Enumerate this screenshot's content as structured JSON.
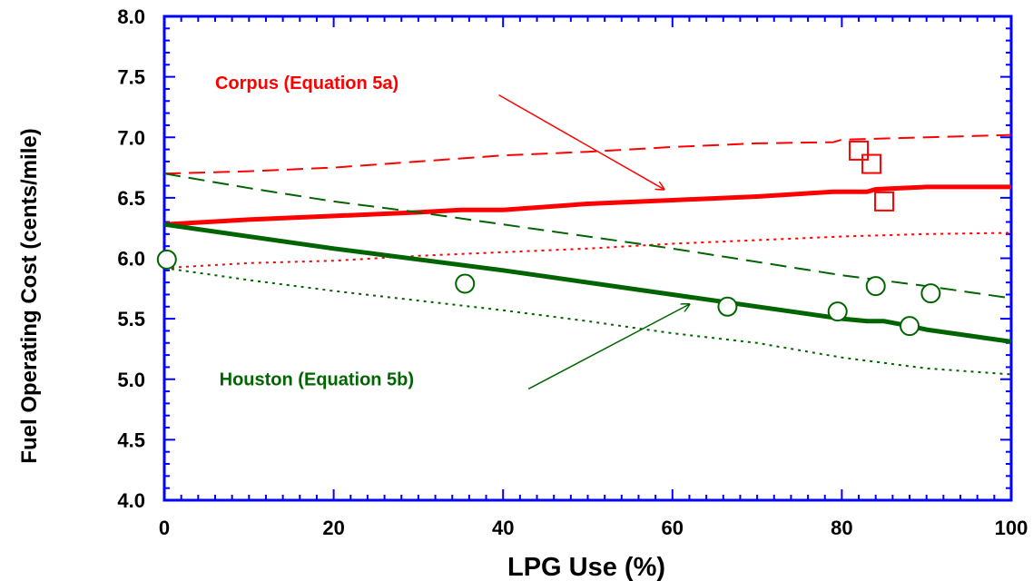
{
  "chart_data": {
    "type": "line",
    "title": "",
    "xlabel": "LPG Use (%)",
    "ylabel": "Fuel Operating Cost (cents/mile)",
    "xlim": [
      0,
      100
    ],
    "ylim": [
      4.0,
      8.0
    ],
    "x_ticks": [
      "0",
      "20",
      "40",
      "60",
      "80",
      "100"
    ],
    "y_ticks": [
      "4.0",
      "4.5",
      "5.0",
      "5.5",
      "6.0",
      "6.5",
      "7.0",
      "7.5",
      "8.0"
    ],
    "grid": false,
    "colors": {
      "corpus": "#ff0000",
      "houston": "#006400",
      "frame": "#0000ff"
    },
    "series": [
      {
        "group": "corpus",
        "style": "solid",
        "x": [
          0,
          10,
          20,
          30,
          35,
          40,
          50,
          60,
          70,
          79,
          83,
          84,
          90,
          100
        ],
        "y": [
          6.28,
          6.32,
          6.35,
          6.38,
          6.4,
          6.4,
          6.45,
          6.48,
          6.51,
          6.55,
          6.55,
          6.57,
          6.59,
          6.59
        ]
      },
      {
        "group": "corpus",
        "style": "dashed",
        "x": [
          0,
          10,
          20,
          30,
          40,
          50,
          60,
          70,
          79,
          80,
          90,
          100
        ],
        "y": [
          6.7,
          6.72,
          6.75,
          6.8,
          6.85,
          6.88,
          6.92,
          6.95,
          6.96,
          6.98,
          7.0,
          7.02
        ]
      },
      {
        "group": "corpus",
        "style": "dotted",
        "x": [
          0,
          10,
          20,
          30,
          40,
          50,
          60,
          70,
          80,
          90,
          100
        ],
        "y": [
          5.92,
          5.96,
          5.98,
          6.02,
          6.05,
          6.08,
          6.12,
          6.15,
          6.18,
          6.2,
          6.21
        ]
      },
      {
        "group": "houston",
        "style": "solid",
        "x": [
          0,
          20,
          40,
          60,
          80,
          83,
          85,
          88,
          90,
          100
        ],
        "y": [
          6.28,
          6.08,
          5.9,
          5.7,
          5.5,
          5.48,
          5.48,
          5.44,
          5.41,
          5.31
        ]
      },
      {
        "group": "houston",
        "style": "dashed",
        "x": [
          0,
          10,
          20,
          30,
          40,
          50,
          60,
          70,
          80,
          90,
          100
        ],
        "y": [
          6.7,
          6.58,
          6.47,
          6.38,
          6.28,
          6.18,
          6.08,
          5.97,
          5.86,
          5.77,
          5.67
        ]
      },
      {
        "group": "houston",
        "style": "dotted",
        "x": [
          0,
          10,
          20,
          30,
          40,
          50,
          60,
          70,
          80,
          90,
          100
        ],
        "y": [
          5.92,
          5.82,
          5.73,
          5.65,
          5.57,
          5.48,
          5.38,
          5.3,
          5.18,
          5.09,
          5.04
        ]
      }
    ],
    "markers": {
      "corpus_squares": [
        {
          "x": 82.0,
          "y": 6.89
        },
        {
          "x": 83.5,
          "y": 6.78
        },
        {
          "x": 85.0,
          "y": 6.47
        }
      ],
      "houston_circles": [
        {
          "x": 0.3,
          "y": 5.99
        },
        {
          "x": 35.5,
          "y": 5.79
        },
        {
          "x": 66.5,
          "y": 5.6
        },
        {
          "x": 79.5,
          "y": 5.56
        },
        {
          "x": 84.0,
          "y": 5.77
        },
        {
          "x": 88.0,
          "y": 5.44
        },
        {
          "x": 90.5,
          "y": 5.71
        }
      ]
    },
    "annotations": [
      {
        "text": "Corpus (Equation 5a)",
        "group": "corpus",
        "text_at": {
          "x": 6.0,
          "y": 7.4
        },
        "arrow_from": {
          "x": 39.5,
          "y": 7.35
        },
        "arrow_to": {
          "x": 59.0,
          "y": 6.57
        }
      },
      {
        "text": "Houston (Equation 5b)",
        "group": "houston",
        "text_at": {
          "x": 6.5,
          "y": 4.95
        },
        "arrow_from": {
          "x": 43.0,
          "y": 4.92
        },
        "arrow_to": {
          "x": 62.0,
          "y": 5.62
        }
      }
    ]
  }
}
